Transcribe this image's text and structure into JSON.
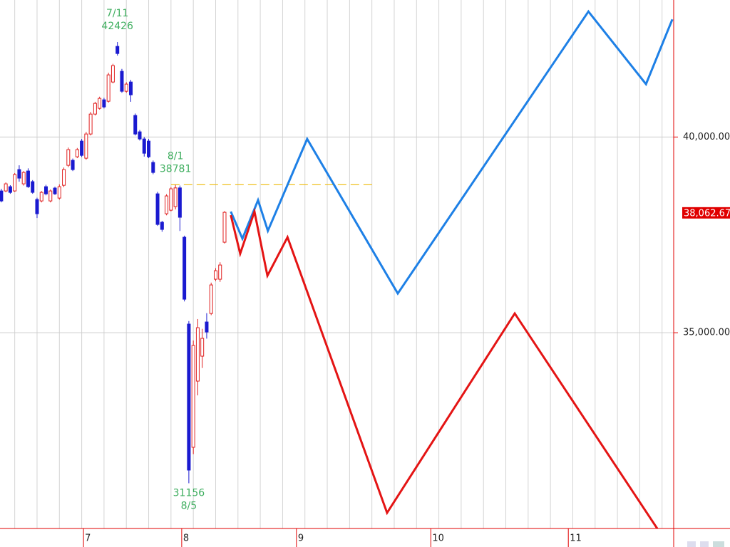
{
  "chart_data": {
    "type": "candlestick",
    "xlim": [
      -0.3,
      150.6
    ],
    "ylim": [
      30000,
      43500
    ],
    "yticks": [
      {
        "value": 40000,
        "label": "40,000.00"
      },
      {
        "value": 35000,
        "label": "35,000.00"
      }
    ],
    "xticks": [
      {
        "value": 18.4,
        "label": "7"
      },
      {
        "value": 40.4,
        "label": "8"
      },
      {
        "value": 66.1,
        "label": "9"
      },
      {
        "value": 96.2,
        "label": "10"
      },
      {
        "value": 127.0,
        "label": "11"
      }
    ],
    "xgrid": [
      3,
      8,
      13,
      18,
      23,
      28,
      33,
      38,
      43,
      48,
      53,
      58,
      63,
      68,
      73,
      78,
      83,
      88,
      93,
      98,
      103,
      108,
      113,
      118,
      123,
      128,
      133,
      138,
      143,
      148
    ],
    "grid": true,
    "up_color": "#e02020",
    "down_color": "#1a1ad0",
    "axis_color": "#e00000",
    "candles": {
      "open": [
        38622,
        38622,
        38731,
        38622,
        39168,
        38804,
        39132,
        38859,
        38404,
        38367,
        38731,
        38367,
        38695,
        38440,
        38767,
        39277,
        39404,
        39495,
        39895,
        39459,
        40077,
        40586,
        40732,
        40950,
        40914,
        41405,
        42315,
        41678,
        41169,
        41405,
        40550,
        40132,
        39950,
        39895,
        39350,
        38549,
        37822,
        38040,
        38131,
        38222,
        38700,
        37440,
        35221,
        32074,
        33765,
        34402,
        35275,
        35493,
        36367,
        36367,
        37313
      ],
      "high": [
        38677,
        38840,
        38770,
        39080,
        39277,
        39130,
        39200,
        38900,
        38450,
        38620,
        38780,
        38660,
        38730,
        38790,
        39220,
        39730,
        39450,
        39720,
        39950,
        40130,
        40640,
        40900,
        41030,
        41000,
        41640,
        41870,
        42426,
        41740,
        41400,
        41460,
        40600,
        40180,
        40000,
        39950,
        39400,
        38600,
        37860,
        38540,
        38720,
        38781,
        38760,
        37480,
        35300,
        34800,
        35350,
        35100,
        35500,
        36280,
        36650,
        36800,
        38110
      ],
      "low": [
        38331,
        38590,
        38550,
        38600,
        38859,
        38760,
        38700,
        38550,
        37931,
        38330,
        38510,
        38330,
        38520,
        38400,
        38720,
        39230,
        39130,
        39460,
        39490,
        39420,
        40040,
        40550,
        40700,
        40730,
        40880,
        41370,
        42080,
        41130,
        41130,
        40900,
        40040,
        39910,
        39500,
        39460,
        39050,
        37730,
        37580,
        38000,
        38100,
        38150,
        37600,
        35800,
        31156,
        31900,
        33400,
        34100,
        34850,
        35450,
        36320,
        36300,
        37280
      ],
      "close": [
        38367,
        38804,
        38586,
        39041,
        38950,
        39095,
        38731,
        38586,
        38040,
        38586,
        38549,
        38622,
        38549,
        38731,
        39168,
        39677,
        39168,
        39677,
        39531,
        40077,
        40586,
        40859,
        40987,
        40769,
        41587,
        41824,
        42133,
        41169,
        41351,
        41078,
        40077,
        39950,
        39586,
        39495,
        39095,
        37767,
        37640,
        38495,
        38677,
        38700,
        37950,
        35857,
        31492,
        34675,
        35129,
        34857,
        35020,
        36221,
        36585,
        36730,
        38076
      ]
    },
    "series": [
      {
        "color": "#1e80e6",
        "x": [
          51.4,
          54.0,
          57.5,
          59.7,
          68.5,
          88.8,
          131.5,
          144.4,
          150.3
        ],
        "values": [
          38095,
          37403,
          38386,
          37603,
          39950,
          36003,
          43206,
          41351,
          43006
        ]
      },
      {
        "color": "#e41414",
        "x": [
          51.4,
          53.5,
          56.7,
          59.6,
          64.1,
          86.4,
          115.0,
          147.2
        ],
        "values": [
          38004,
          37021,
          38095,
          36457,
          37440,
          30400,
          35493,
          29950
        ]
      }
    ],
    "reference_line": {
      "value": 38781,
      "x": [
        38,
        84
      ],
      "color": "#f0c020"
    },
    "current_price": {
      "value": 38062.67,
      "label": "38,062.67"
    },
    "annotations": [
      {
        "label": "7/11",
        "value": 42426,
        "kind": "high"
      },
      {
        "label": "8/1",
        "value": 38781,
        "kind": "high"
      },
      {
        "label": "8/5",
        "value": 31156,
        "kind": "low"
      }
    ]
  }
}
